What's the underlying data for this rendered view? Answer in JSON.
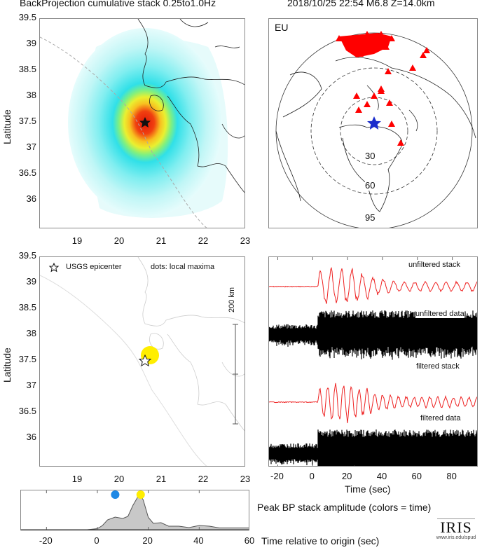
{
  "header": {
    "left_title": "BackProjection cumulative stack 0.25to1.0Hz",
    "right_title": "2018/10/25 22:54  M6.8  Z=14.0km"
  },
  "colors": {
    "heat_low": "#e0fbfb",
    "heat_mid": "#33e0e8",
    "heat_yellow": "#f0f020",
    "heat_red": "#e83010",
    "station": "#ff0000",
    "epicenter_global": "#1a2ccc",
    "stack_trace": "#ee2222",
    "maxima_blue": "#1e88e5",
    "maxima_yellow": "#ffee00",
    "amp_fill": "#c8c8c8"
  },
  "chart_data": [
    {
      "type": "heatmap",
      "name": "backprojection-cumulative-map",
      "title": "BackProjection cumulative stack 0.25to1.0Hz",
      "xlabel": "",
      "ylabel": "Latitude",
      "xlim": [
        18.1,
        23.0
      ],
      "ylim": [
        35.45,
        39.5
      ],
      "xticks": [
        "19",
        "20",
        "21",
        "22",
        "23"
      ],
      "yticks": [
        "39.5",
        "39",
        "38.5",
        "38",
        "37.5",
        "37",
        "36.5",
        "36"
      ],
      "peak": {
        "lon": 20.6,
        "lat": 37.55
      },
      "epicenter": {
        "lon": 20.6,
        "lat": 37.52
      }
    },
    {
      "type": "scatter",
      "name": "station-map",
      "region_label": "EU",
      "distance_rings_deg": [
        "30",
        "60",
        "95"
      ]
    },
    {
      "type": "scatter",
      "name": "local-maxima-map",
      "ylabel": "Latitude",
      "xlim": [
        18.1,
        23.0
      ],
      "ylim": [
        35.45,
        39.5
      ],
      "xticks": [
        "19",
        "20",
        "21",
        "22",
        "23"
      ],
      "yticks": [
        "39.5",
        "39",
        "38.5",
        "38",
        "37.5",
        "37",
        "36.5",
        "36"
      ],
      "legend_epicenter": "USGS epicenter",
      "legend_dots": "dots: local maxima",
      "scale_label": "200 km",
      "epicenter": {
        "lon": 20.6,
        "lat": 37.52
      },
      "maxima": [
        {
          "lon": 20.7,
          "lat": 37.62,
          "time": 17
        }
      ]
    },
    {
      "type": "line",
      "name": "waveforms",
      "xlabel": "Time (sec)",
      "xlim": [
        -25,
        95
      ],
      "xticks": [
        "-20",
        "0",
        "20",
        "40",
        "60",
        "80"
      ],
      "traces": [
        {
          "label": "unfiltered stack"
        },
        {
          "label": "unfiltered data"
        },
        {
          "label": "filtered stack"
        },
        {
          "label": "filtered data"
        }
      ]
    },
    {
      "type": "area",
      "name": "peak-bp-amplitude",
      "title": "Peak BP stack amplitude (colors = time)",
      "xlabel": "Time relative to origin (sec)",
      "xlim": [
        -30,
        60
      ],
      "ylim": [
        0,
        1
      ],
      "xticks": [
        "-20",
        "0",
        "20",
        "40",
        "60"
      ],
      "x": [
        -30,
        -4,
        0,
        2,
        4,
        7,
        10,
        12,
        14,
        16,
        17,
        18,
        20,
        22,
        25,
        28,
        32,
        36,
        40,
        44,
        48,
        55,
        60
      ],
      "y": [
        0,
        0,
        0.03,
        0.12,
        0.28,
        0.36,
        0.32,
        0.38,
        0.7,
        0.95,
        0.97,
        0.85,
        0.35,
        0.18,
        0.2,
        0.1,
        0.1,
        0.06,
        0.12,
        0.1,
        0.05,
        0.05,
        0.05
      ],
      "maxima": [
        {
          "time": 7,
          "color": "#1e88e5"
        },
        {
          "time": 17,
          "color": "#ffee00"
        }
      ]
    }
  ],
  "footer": {
    "logo_text": "IRIS",
    "logo_url_text": "www.iris.edu/spud"
  }
}
